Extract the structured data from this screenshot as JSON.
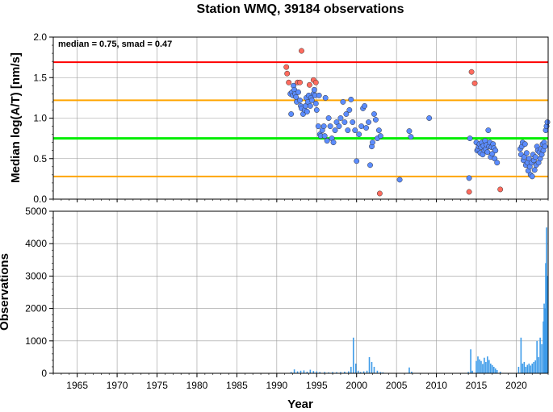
{
  "chart_data": [
    {
      "type": "scatter",
      "title": "Station WMQ, 39184 observations",
      "ylabel": "Median log(A/T) [nm/s]",
      "annotation": "median = 0.75, smad = 0.47",
      "xlim": [
        1962,
        2024
      ],
      "ylim": [
        0,
        2.0
      ],
      "y_ticks": [
        "0.0",
        "0.5",
        "1.0",
        "1.5",
        "2.0"
      ],
      "grid": true,
      "reference_lines": [
        {
          "value": 1.69,
          "color": "#ff0000"
        },
        {
          "value": 1.22,
          "color": "#ffa500"
        },
        {
          "value": 0.75,
          "color": "#00ee00"
        },
        {
          "value": 0.28,
          "color": "#ffa500"
        }
      ],
      "series": [
        {
          "color": "#ff6b5e",
          "points": [
            [
              1991.2,
              1.63
            ],
            [
              1991.3,
              1.55
            ],
            [
              1991.5,
              1.44
            ],
            [
              1992.6,
              1.44
            ],
            [
              1992.9,
              1.44
            ],
            [
              1993.1,
              1.83
            ],
            [
              1994.1,
              1.41
            ],
            [
              1994.6,
              1.47
            ],
            [
              1994.9,
              1.44
            ],
            [
              2002.9,
              0.07
            ],
            [
              2014.1,
              0.09
            ],
            [
              2014.4,
              1.57
            ],
            [
              2014.8,
              1.43
            ],
            [
              2018.0,
              0.12
            ]
          ]
        },
        {
          "color": "#5b8cff",
          "points": [
            [
              1991.7,
              1.3
            ],
            [
              1991.8,
              1.05
            ],
            [
              1991.9,
              1.32
            ],
            [
              1992.0,
              1.28
            ],
            [
              1992.1,
              1.4
            ],
            [
              1992.2,
              1.35
            ],
            [
              1992.3,
              1.3
            ],
            [
              1992.4,
              1.26
            ],
            [
              1992.5,
              1.2
            ],
            [
              1992.7,
              1.32
            ],
            [
              1992.9,
              1.22
            ],
            [
              1993.0,
              1.15
            ],
            [
              1993.1,
              1.12
            ],
            [
              1993.3,
              1.05
            ],
            [
              1993.5,
              1.1
            ],
            [
              1993.6,
              1.15
            ],
            [
              1993.7,
              1.25
            ],
            [
              1993.8,
              1.08
            ],
            [
              1993.9,
              1.2
            ],
            [
              1994.0,
              1.28
            ],
            [
              1994.2,
              1.15
            ],
            [
              1994.3,
              1.25
            ],
            [
              1994.4,
              1.22
            ],
            [
              1994.6,
              1.3
            ],
            [
              1994.7,
              1.35
            ],
            [
              1994.8,
              1.28
            ],
            [
              1994.9,
              1.18
            ],
            [
              1995.0,
              1.1
            ],
            [
              1995.2,
              0.9
            ],
            [
              1995.3,
              1.28
            ],
            [
              1995.4,
              0.8
            ],
            [
              1995.5,
              0.78
            ],
            [
              1995.7,
              0.85
            ],
            [
              1995.9,
              0.9
            ],
            [
              1996.0,
              0.78
            ],
            [
              1996.1,
              1.25
            ],
            [
              1996.3,
              0.72
            ],
            [
              1996.5,
              1.0
            ],
            [
              1996.7,
              0.9
            ],
            [
              1996.9,
              0.75
            ],
            [
              1997.1,
              0.7
            ],
            [
              1997.3,
              0.85
            ],
            [
              1997.5,
              0.95
            ],
            [
              1997.8,
              0.9
            ],
            [
              1998.0,
              1.0
            ],
            [
              1998.3,
              1.2
            ],
            [
              1998.5,
              0.95
            ],
            [
              1998.7,
              1.05
            ],
            [
              1998.9,
              0.85
            ],
            [
              1999.1,
              1.1
            ],
            [
              1999.3,
              1.23
            ],
            [
              1999.5,
              0.95
            ],
            [
              1999.8,
              0.85
            ],
            [
              2000.0,
              0.47
            ],
            [
              2000.3,
              0.8
            ],
            [
              2000.6,
              0.9
            ],
            [
              2000.8,
              1.12
            ],
            [
              2001.0,
              1.15
            ],
            [
              2001.2,
              0.88
            ],
            [
              2001.5,
              0.95
            ],
            [
              2001.7,
              0.42
            ],
            [
              2001.9,
              0.65
            ],
            [
              2002.0,
              0.7
            ],
            [
              2002.2,
              1.05
            ],
            [
              2002.4,
              0.98
            ],
            [
              2002.6,
              0.75
            ],
            [
              2002.8,
              0.85
            ],
            [
              2003.0,
              0.78
            ],
            [
              2005.4,
              0.24
            ],
            [
              2006.6,
              0.84
            ],
            [
              2006.8,
              0.77
            ],
            [
              2009.1,
              1.0
            ],
            [
              2014.1,
              0.26
            ],
            [
              2014.2,
              0.75
            ],
            [
              2015.0,
              0.7
            ],
            [
              2015.1,
              0.6
            ],
            [
              2015.2,
              0.62
            ],
            [
              2015.3,
              0.65
            ],
            [
              2015.4,
              0.68
            ],
            [
              2015.5,
              0.57
            ],
            [
              2015.6,
              0.64
            ],
            [
              2015.7,
              0.7
            ],
            [
              2015.8,
              0.55
            ],
            [
              2015.9,
              0.66
            ],
            [
              2016.0,
              0.6
            ],
            [
              2016.1,
              0.72
            ],
            [
              2016.2,
              0.62
            ],
            [
              2016.3,
              0.67
            ],
            [
              2016.4,
              0.58
            ],
            [
              2016.5,
              0.85
            ],
            [
              2016.6,
              0.65
            ],
            [
              2016.7,
              0.7
            ],
            [
              2016.8,
              0.52
            ],
            [
              2016.9,
              0.64
            ],
            [
              2017.0,
              0.56
            ],
            [
              2017.1,
              0.68
            ],
            [
              2017.2,
              0.63
            ],
            [
              2017.3,
              0.5
            ],
            [
              2017.4,
              0.6
            ],
            [
              2017.6,
              0.45
            ],
            [
              2020.5,
              0.62
            ],
            [
              2020.6,
              0.55
            ],
            [
              2020.7,
              0.65
            ],
            [
              2020.8,
              0.7
            ],
            [
              2020.9,
              0.48
            ],
            [
              2021.0,
              0.52
            ],
            [
              2021.1,
              0.68
            ],
            [
              2021.2,
              0.42
            ],
            [
              2021.3,
              0.57
            ],
            [
              2021.4,
              0.45
            ],
            [
              2021.5,
              0.35
            ],
            [
              2021.6,
              0.5
            ],
            [
              2021.7,
              0.4
            ],
            [
              2021.8,
              0.3
            ],
            [
              2021.9,
              0.45
            ],
            [
              2022.0,
              0.28
            ],
            [
              2022.1,
              0.55
            ],
            [
              2022.2,
              0.48
            ],
            [
              2022.3,
              0.36
            ],
            [
              2022.4,
              0.52
            ],
            [
              2022.5,
              0.42
            ],
            [
              2022.6,
              0.65
            ],
            [
              2022.7,
              0.6
            ],
            [
              2022.8,
              0.45
            ],
            [
              2022.9,
              0.58
            ],
            [
              2023.0,
              0.5
            ],
            [
              2023.1,
              0.62
            ],
            [
              2023.2,
              0.55
            ],
            [
              2023.3,
              0.68
            ],
            [
              2023.4,
              0.6
            ],
            [
              2023.5,
              0.7
            ],
            [
              2023.6,
              0.65
            ],
            [
              2023.7,
              0.85
            ],
            [
              2023.8,
              0.9
            ],
            [
              2023.9,
              0.95
            ]
          ]
        }
      ]
    },
    {
      "type": "bar",
      "ylabel": "Observations",
      "xlabel": "Year",
      "xlim": [
        1962,
        2024
      ],
      "ylim": [
        0,
        5000
      ],
      "x_ticks": [
        "1965",
        "1970",
        "1975",
        "1980",
        "1985",
        "1990",
        "1995",
        "2000",
        "2005",
        "2010",
        "2015",
        "2020"
      ],
      "y_ticks": [
        "0",
        "1000",
        "2000",
        "3000",
        "4000",
        "5000"
      ],
      "grid": true,
      "bar_color": "#3d9be9",
      "bars": [
        [
          1991.8,
          40
        ],
        [
          1992.2,
          120
        ],
        [
          1992.6,
          60
        ],
        [
          1993.0,
          80
        ],
        [
          1993.4,
          90
        ],
        [
          1993.8,
          50
        ],
        [
          1994.2,
          110
        ],
        [
          1994.6,
          70
        ],
        [
          1995.0,
          60
        ],
        [
          1995.4,
          40
        ],
        [
          1996.0,
          40
        ],
        [
          1996.5,
          30
        ],
        [
          1997.0,
          40
        ],
        [
          1997.5,
          35
        ],
        [
          1998.0,
          40
        ],
        [
          1998.5,
          50
        ],
        [
          1999.0,
          60
        ],
        [
          1999.3,
          200
        ],
        [
          1999.6,
          1100
        ],
        [
          1999.9,
          300
        ],
        [
          2000.2,
          80
        ],
        [
          2000.5,
          40
        ],
        [
          2000.9,
          60
        ],
        [
          2001.3,
          80
        ],
        [
          2001.6,
          500
        ],
        [
          2001.9,
          350
        ],
        [
          2002.2,
          200
        ],
        [
          2002.6,
          80
        ],
        [
          2003.0,
          40
        ],
        [
          2003.3,
          30
        ],
        [
          2006.6,
          180
        ],
        [
          2006.9,
          50
        ],
        [
          2014.0,
          40
        ],
        [
          2014.3,
          740
        ],
        [
          2014.5,
          80
        ],
        [
          2015.0,
          380
        ],
        [
          2015.2,
          520
        ],
        [
          2015.4,
          430
        ],
        [
          2015.6,
          380
        ],
        [
          2015.8,
          290
        ],
        [
          2016.0,
          480
        ],
        [
          2016.2,
          350
        ],
        [
          2016.4,
          520
        ],
        [
          2016.6,
          410
        ],
        [
          2016.8,
          300
        ],
        [
          2017.0,
          250
        ],
        [
          2017.2,
          200
        ],
        [
          2017.4,
          150
        ],
        [
          2017.6,
          100
        ],
        [
          2018.0,
          50
        ],
        [
          2020.3,
          200
        ],
        [
          2020.6,
          1100
        ],
        [
          2020.8,
          300
        ],
        [
          2021.0,
          350
        ],
        [
          2021.2,
          200
        ],
        [
          2021.4,
          260
        ],
        [
          2021.6,
          300
        ],
        [
          2021.8,
          240
        ],
        [
          2022.0,
          300
        ],
        [
          2022.2,
          350
        ],
        [
          2022.4,
          400
        ],
        [
          2022.6,
          1000
        ],
        [
          2022.8,
          500
        ],
        [
          2023.0,
          1100
        ],
        [
          2023.2,
          900
        ],
        [
          2023.4,
          1600
        ],
        [
          2023.5,
          2150
        ],
        [
          2023.6,
          2000
        ],
        [
          2023.7,
          3400
        ],
        [
          2023.8,
          4500
        ],
        [
          2023.9,
          3000
        ]
      ]
    }
  ]
}
